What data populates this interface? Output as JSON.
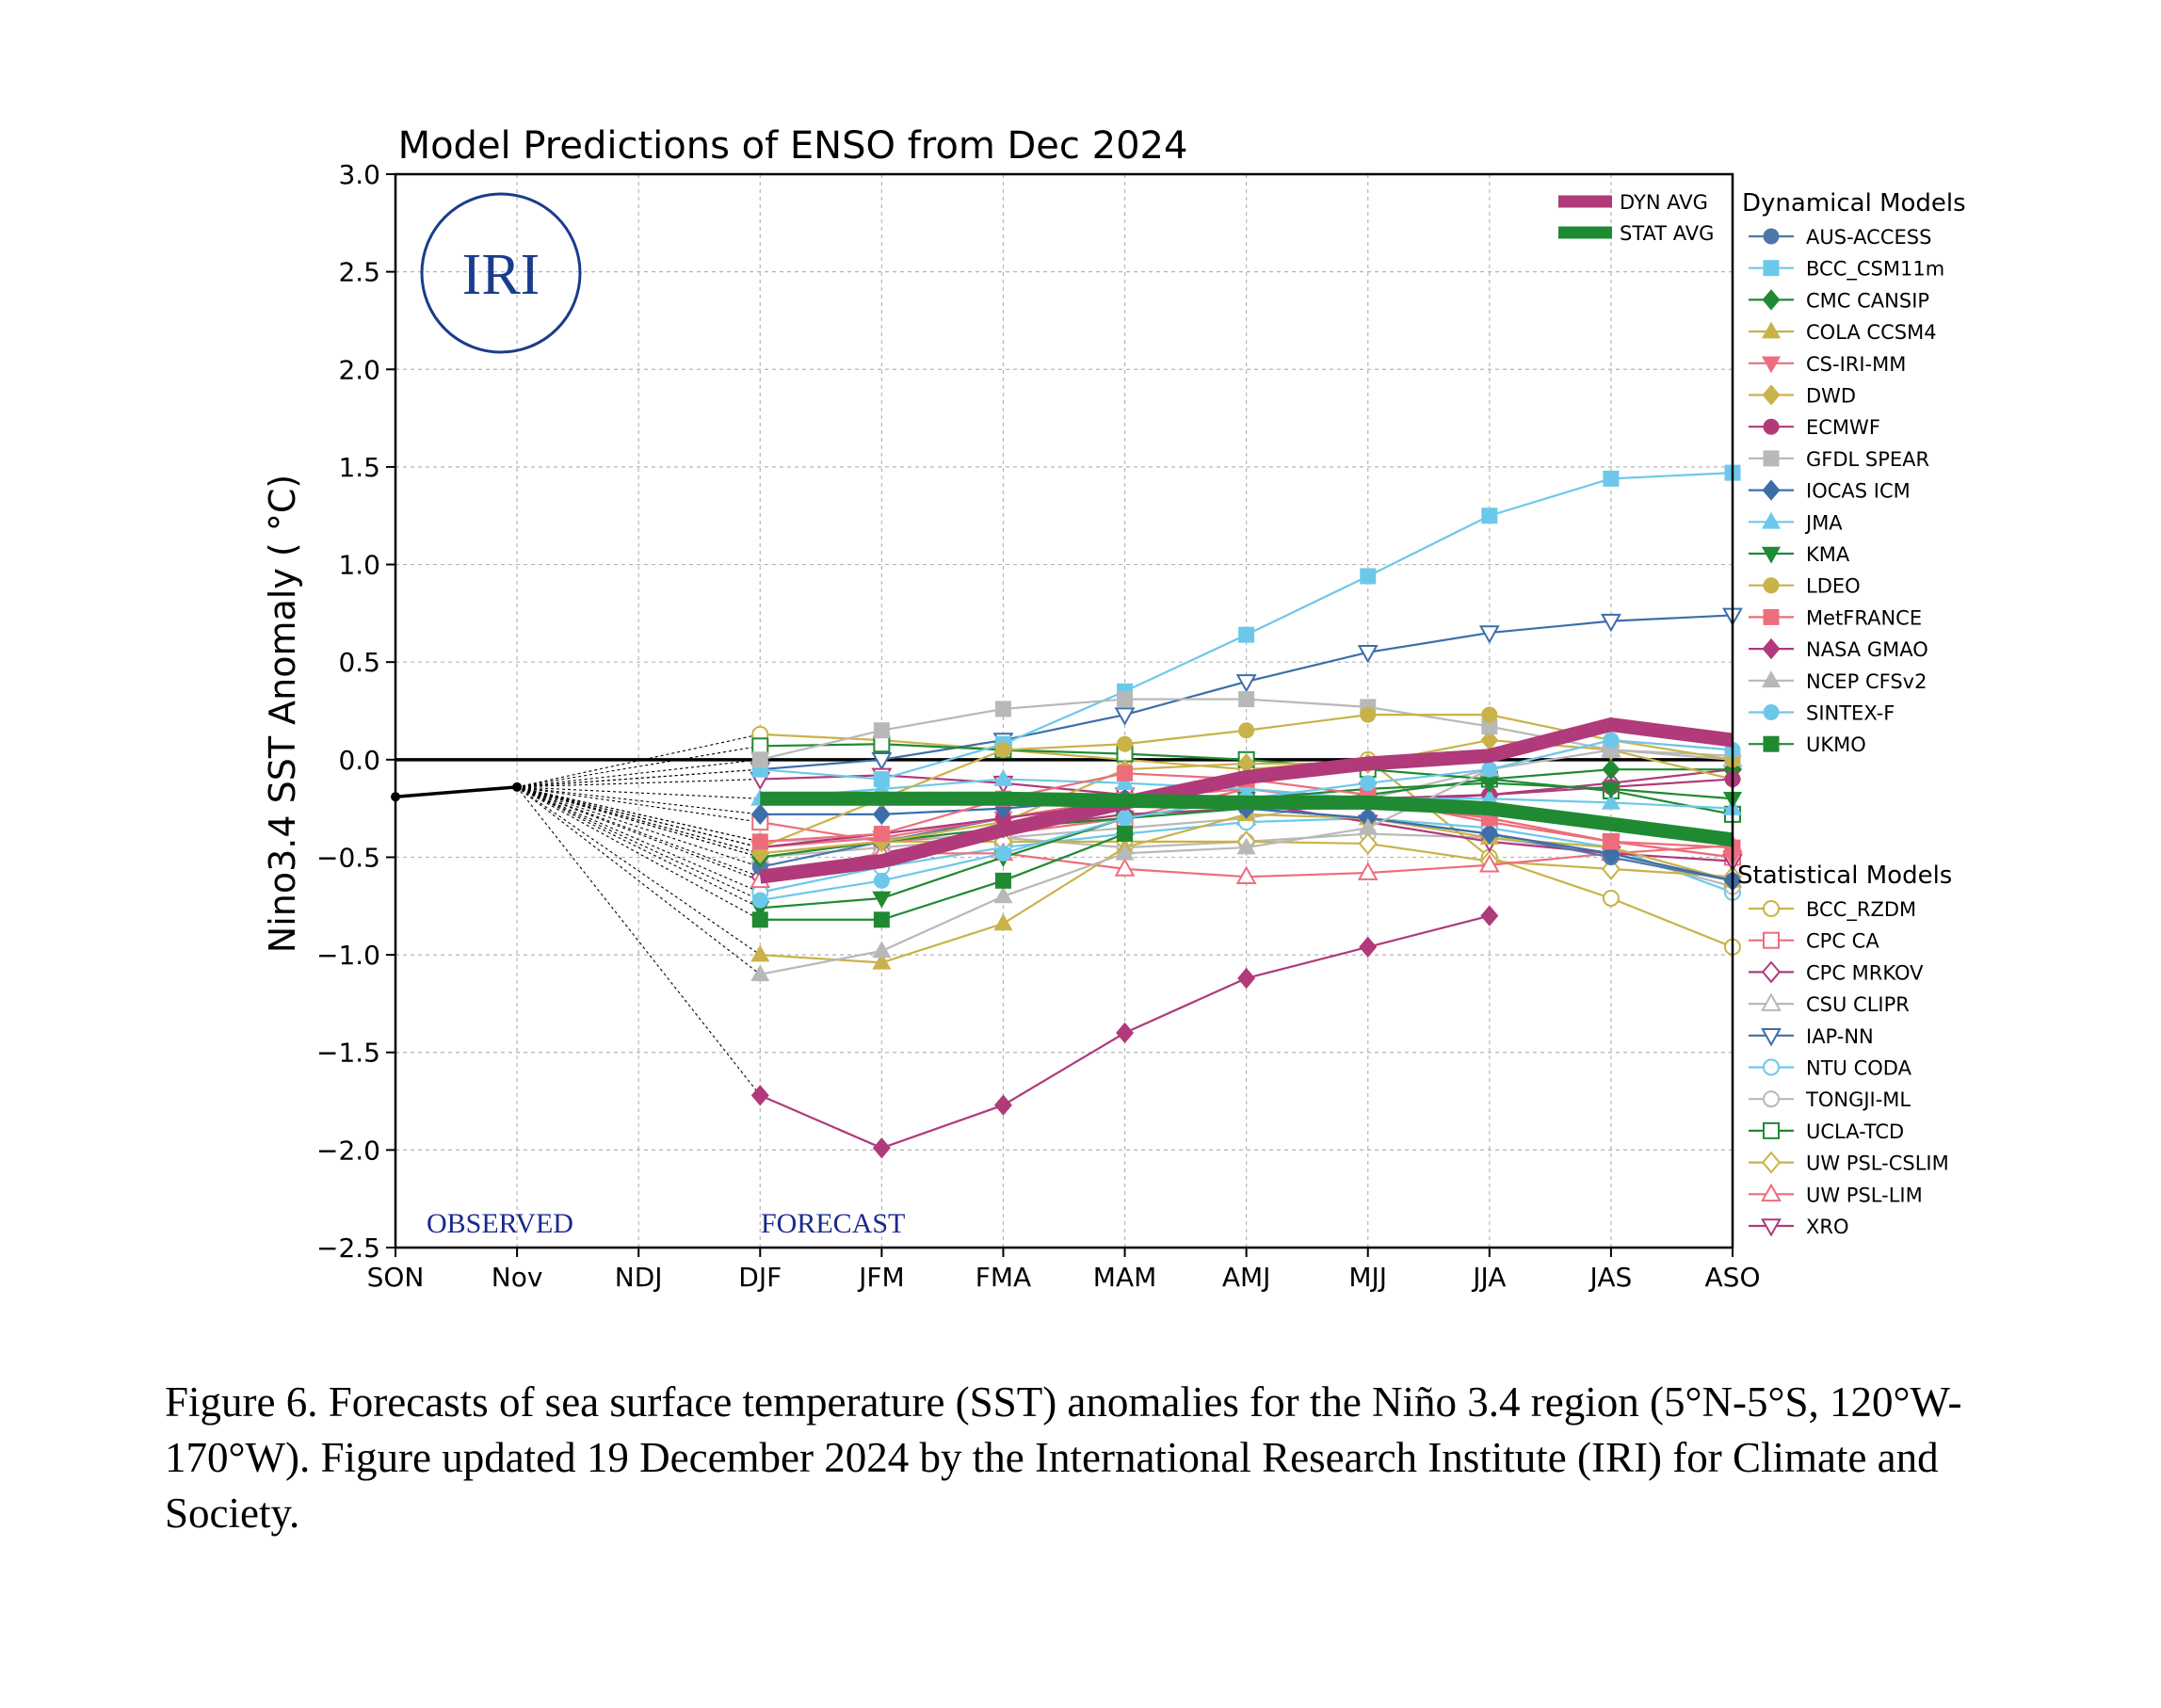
{
  "chart_data": {
    "type": "line",
    "title": "Model Predictions of ENSO from Dec 2024",
    "ylabel": "Nino3.4 SST Anomaly ( °C)",
    "xlabel": "",
    "categories": [
      "SON",
      "Nov",
      "NDJ",
      "DJF",
      "JFM",
      "FMA",
      "MAM",
      "AMJ",
      "MJJ",
      "JJA",
      "JAS",
      "ASO"
    ],
    "ylim": [
      -2.5,
      3.0
    ],
    "yticks": [
      3.0,
      2.5,
      2.0,
      1.5,
      1.0,
      0.5,
      0.0,
      -0.5,
      -1.0,
      -1.5,
      -2.0,
      -2.5
    ],
    "ytick_labels": [
      "3.0",
      "2.5",
      "2.0",
      "1.5",
      "1.0",
      "0.5",
      "0.0",
      "−0.5",
      "−1.0",
      "−1.5",
      "−2.0",
      "−2.5"
    ],
    "grid": true,
    "observed": {
      "x_index": [
        0,
        1
      ],
      "values": [
        -0.19,
        -0.14
      ]
    },
    "annotations": {
      "observed": "OBSERVED",
      "forecast": "FORECAST"
    },
    "logo_text": "IRI",
    "averages": [
      {
        "name": "DYN AVG",
        "color": "#b03a7a",
        "values": [
          -0.6,
          -0.52,
          -0.36,
          -0.22,
          -0.09,
          -0.02,
          0.02,
          0.18,
          0.1
        ]
      },
      {
        "name": "STAT AVG",
        "color": "#1f8a32",
        "values": [
          -0.2,
          -0.2,
          -0.2,
          -0.21,
          -0.22,
          -0.22,
          -0.25,
          -0.33,
          -0.41
        ]
      }
    ],
    "legend_dynamical_title": "Dynamical Models",
    "legend_statistical_title": "Statistical Models",
    "dynamical": [
      {
        "name": "AUS-ACCESS",
        "color": "#4c78a8",
        "marker": "circle",
        "values": [
          -0.55,
          -0.42,
          -0.3,
          -0.2,
          -0.25,
          -0.3,
          -0.38,
          -0.5,
          -0.62
        ]
      },
      {
        "name": "BCC_CSM11m",
        "color": "#6cc8ea",
        "marker": "square",
        "values": [
          -0.05,
          -0.1,
          0.08,
          0.35,
          0.64,
          0.94,
          1.25,
          1.44,
          1.47
        ]
      },
      {
        "name": "CMC CANSIP",
        "color": "#1f8a32",
        "marker": "diamond",
        "values": [
          -0.5,
          -0.42,
          -0.35,
          -0.3,
          -0.25,
          -0.18,
          -0.1,
          -0.05,
          -0.05
        ]
      },
      {
        "name": "COLA CCSM4",
        "color": "#c9b24a",
        "marker": "triangle-up",
        "values": [
          -1.0,
          -1.04,
          -0.84,
          -0.45,
          -0.28,
          -0.3,
          -0.4,
          -0.45,
          -0.62
        ]
      },
      {
        "name": "CS-IRI-MM",
        "color": "#ee6d7c",
        "marker": "triangle-down",
        "values": [
          -0.45,
          -0.4,
          -0.3,
          -0.2,
          -0.15,
          -0.22,
          -0.3,
          -0.42,
          -0.5
        ]
      },
      {
        "name": "DWD",
        "color": "#c9b24a",
        "marker": "diamond",
        "values": [
          -0.48,
          -0.42,
          -0.32,
          -0.05,
          -0.02,
          -0.02,
          0.1,
          0.05,
          -0.1
        ]
      },
      {
        "name": "ECMWF",
        "color": "#b03a7a",
        "marker": "circle",
        "values": [
          -0.45,
          -0.38,
          -0.3,
          -0.22,
          -0.2,
          -0.2,
          -0.18,
          -0.14,
          -0.1
        ]
      },
      {
        "name": "GFDL SPEAR",
        "color": "#b8b8b8",
        "marker": "square",
        "values": [
          0.0,
          0.15,
          0.26,
          0.31,
          0.31,
          0.27,
          0.17,
          0.05,
          0.02
        ]
      },
      {
        "name": "IOCAS ICM",
        "color": "#3d6ea8",
        "marker": "diamond",
        "values": [
          -0.28,
          -0.28,
          -0.25,
          -0.2,
          -0.25,
          -0.3,
          -0.38,
          -0.48,
          -0.62
        ]
      },
      {
        "name": "JMA",
        "color": "#6cc8ea",
        "marker": "triangle-up",
        "values": [
          -0.2,
          -0.15,
          -0.1,
          -0.12,
          -0.15,
          -0.2,
          -0.2,
          -0.22,
          -0.25
        ]
      },
      {
        "name": "KMA",
        "color": "#1f8a32",
        "marker": "triangle-down",
        "values": [
          -0.76,
          -0.71,
          -0.5,
          -0.3,
          -0.2,
          -0.15,
          -0.12,
          -0.15,
          -0.2
        ]
      },
      {
        "name": "LDEO",
        "color": "#c9b24a",
        "marker": "circle",
        "values": [
          -0.45,
          -0.2,
          0.05,
          0.08,
          0.15,
          0.23,
          0.23,
          0.1,
          0.0
        ]
      },
      {
        "name": "MetFRANCE",
        "color": "#ee6d7c",
        "marker": "square",
        "values": [
          -0.42,
          -0.38,
          -0.2,
          -0.07,
          -0.1,
          -0.18,
          -0.3,
          -0.42,
          -0.45
        ]
      },
      {
        "name": "NASA GMAO",
        "color": "#b03a7a",
        "marker": "diamond",
        "values": [
          -1.72,
          -1.99,
          -1.77,
          -1.4,
          -1.12,
          -0.96,
          -0.8
        ]
      },
      {
        "name": "NCEP CFSv2",
        "color": "#b8b8b8",
        "marker": "triangle-up",
        "values": [
          -1.1,
          -0.98,
          -0.7,
          -0.48,
          -0.45,
          -0.35,
          -0.05,
          0.1,
          0.05
        ]
      },
      {
        "name": "SINTEX-F",
        "color": "#6cc8ea",
        "marker": "circle",
        "values": [
          -0.72,
          -0.62,
          -0.48,
          -0.3,
          -0.2,
          -0.12,
          -0.05,
          0.1,
          0.05
        ]
      },
      {
        "name": "UKMO",
        "color": "#1f8a32",
        "marker": "square",
        "values": [
          -0.82,
          -0.82,
          -0.62,
          -0.38
        ]
      }
    ],
    "statistical": [
      {
        "name": "BCC_RZDM",
        "color": "#c9b24a",
        "marker": "circle-open",
        "values": [
          0.13,
          0.1,
          0.05,
          0.0,
          -0.05,
          0.0,
          -0.5,
          -0.71,
          -0.96
        ]
      },
      {
        "name": "CPC CA",
        "color": "#ee6d7c",
        "marker": "square-open",
        "values": [
          -0.32,
          -0.42,
          -0.38,
          -0.3,
          -0.15,
          -0.2,
          -0.32,
          -0.42,
          -0.5
        ]
      },
      {
        "name": "CPC MRKOV",
        "color": "#b03a7a",
        "marker": "diamond-open",
        "values": [
          -0.6,
          -0.48,
          -0.36,
          -0.28,
          -0.25,
          -0.22,
          -0.18,
          -0.12,
          -0.05
        ]
      },
      {
        "name": "CSU CLIPR",
        "color": "#b8b8b8",
        "marker": "triangle-up-open",
        "values": [
          -0.5,
          -0.45,
          -0.4,
          -0.35,
          -0.3,
          -0.2,
          -0.05,
          0.05,
          0.0
        ]
      },
      {
        "name": "IAP-NN",
        "color": "#3d6ea8",
        "marker": "triangle-down-open",
        "values": [
          -0.05,
          0.0,
          0.1,
          0.23,
          0.4,
          0.55,
          0.65,
          0.71,
          0.74
        ]
      },
      {
        "name": "NTU CODA",
        "color": "#6cc8ea",
        "marker": "circle-open",
        "values": [
          -0.68,
          -0.55,
          -0.45,
          -0.38,
          -0.32,
          -0.3,
          -0.35,
          -0.45,
          -0.68
        ]
      },
      {
        "name": "TONGJI-ML",
        "color": "#b8b8b8",
        "marker": "circle-open",
        "values": [
          -0.42,
          -0.4,
          -0.4,
          -0.45,
          -0.42,
          -0.38,
          -0.4,
          -0.48,
          -0.65
        ]
      },
      {
        "name": "UCLA-TCD",
        "color": "#1f8a32",
        "marker": "square-open",
        "values": [
          0.07,
          0.08,
          0.05,
          0.03,
          0.0,
          -0.05,
          -0.1,
          -0.16,
          -0.28
        ]
      },
      {
        "name": "UW PSL-CSLIM",
        "color": "#c9b24a",
        "marker": "diamond-open",
        "values": [
          -0.48,
          -0.42,
          -0.42,
          -0.42,
          -0.42,
          -0.43,
          -0.52,
          -0.56,
          -0.6
        ]
      },
      {
        "name": "UW PSL-LIM",
        "color": "#ee6d7c",
        "marker": "triangle-up-open",
        "values": [
          -0.62,
          -0.48,
          -0.48,
          -0.56,
          -0.6,
          -0.58,
          -0.54,
          -0.48,
          -0.44
        ]
      },
      {
        "name": "XRO",
        "color": "#b03a7a",
        "marker": "triangle-down-open",
        "values": [
          -0.1,
          -0.08,
          -0.12,
          -0.18,
          -0.22,
          -0.32,
          -0.42,
          -0.48,
          -0.52
        ]
      }
    ]
  },
  "caption": "Figure 6. Forecasts of sea surface temperature (SST) anomalies for the Niño 3.4 region (5°N-5°S, 120°W-170°W). Figure updated 19 December 2024 by the International Research Institute (IRI) for Climate and Society."
}
